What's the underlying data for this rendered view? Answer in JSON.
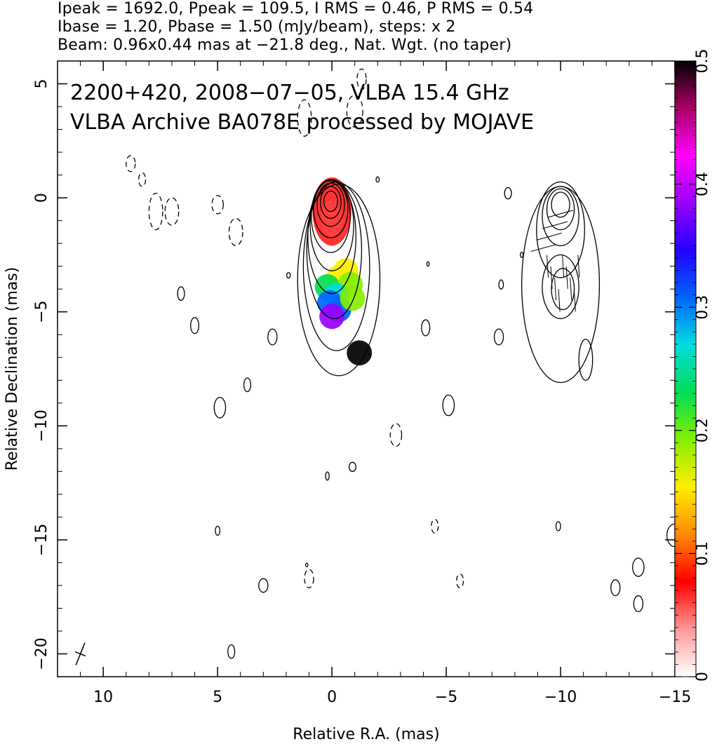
{
  "header": {
    "line1": "Ipeak = 1692.0, Ppeak = 109.5, I RMS = 0.46, P RMS = 0.54",
    "line2": "Ibase = 1.20, Pbase = 1.50 (mJy/beam), steps: x 2",
    "line3": "Beam: 0.96x0.44 mas at −21.8 deg., Nat. Wgt. (no taper)"
  },
  "chart_data": {
    "type": "contour",
    "xlabel": "Relative R.A. (mas)",
    "ylabel": "Relative Declination (mas)",
    "xlim": [
      12,
      -15
    ],
    "ylim": [
      -21,
      6
    ],
    "x_ticks": [
      {
        "v": 10,
        "label": "10"
      },
      {
        "v": 5,
        "label": "5"
      },
      {
        "v": 0,
        "label": "0"
      },
      {
        "v": -5,
        "label": "−5"
      },
      {
        "v": -10,
        "label": "−10"
      },
      {
        "v": -15,
        "label": "−15"
      }
    ],
    "y_ticks": [
      {
        "v": 5,
        "label": "5"
      },
      {
        "v": 0,
        "label": "0"
      },
      {
        "v": -5,
        "label": "−5"
      },
      {
        "v": -10,
        "label": "−10"
      },
      {
        "v": -15,
        "label": "−15"
      },
      {
        "v": -20,
        "label": "−20"
      }
    ],
    "annotations": [
      "2200+420, 2008−07−05, VLBA 15.4 GHz",
      "VLBA Archive BA078E processed by MOJAVE"
    ],
    "colorbar": {
      "range": [
        0,
        0.5
      ],
      "ticks": [
        {
          "v": 0,
          "label": "0"
        },
        {
          "v": 0.1,
          "label": "0.1"
        },
        {
          "v": 0.2,
          "label": "0.2"
        },
        {
          "v": 0.3,
          "label": "0.3"
        },
        {
          "v": 0.4,
          "label": "0.4"
        },
        {
          "v": 0.5,
          "label": "0.5"
        }
      ],
      "colors": [
        "#ffffff",
        "#ff9999",
        "#ff0000",
        "#ff8800",
        "#ffee00",
        "#88ee00",
        "#00dd55",
        "#00dddd",
        "#0066ff",
        "#2200ff",
        "#9900ff",
        "#ff00ff",
        "#aa0066",
        "#000000"
      ]
    },
    "jet_polarization": [
      {
        "x": -0.3,
        "y": -3.5,
        "v": 0.17
      },
      {
        "x": -0.6,
        "y": -3.2,
        "v": 0.15
      },
      {
        "x": 0.2,
        "y": -3.9,
        "v": 0.22
      },
      {
        "x": -0.8,
        "y": -3.8,
        "v": 0.18
      },
      {
        "x": -0.2,
        "y": -4.3,
        "v": 0.25
      },
      {
        "x": 0.1,
        "y": -4.6,
        "v": 0.31
      },
      {
        "x": -0.3,
        "y": -4.9,
        "v": 0.29
      },
      {
        "x": 0.0,
        "y": -5.2,
        "v": 0.38
      },
      {
        "x": -0.9,
        "y": -4.4,
        "v": 0.21
      },
      {
        "x": -1.2,
        "y": -6.8,
        "v": 0.49
      }
    ],
    "core_polarization": {
      "x": 0.0,
      "y": -0.6,
      "v": 0.08
    },
    "main_contours": [
      {
        "cx": -0.3,
        "cy": -3.6,
        "rx": 1.8,
        "ry": 4.2,
        "dash": false
      },
      {
        "cx": -0.2,
        "cy": -3.0,
        "rx": 1.45,
        "ry": 3.7,
        "dash": false
      },
      {
        "cx": -0.1,
        "cy": -2.3,
        "rx": 1.2,
        "ry": 3.0,
        "dash": false
      },
      {
        "cx": 0.0,
        "cy": -1.7,
        "rx": 1.05,
        "ry": 2.5,
        "dash": false
      },
      {
        "cx": 0.0,
        "cy": -1.2,
        "rx": 0.95,
        "ry": 2.0,
        "dash": false
      },
      {
        "cx": 0.05,
        "cy": -0.8,
        "rx": 0.85,
        "ry": 1.6,
        "dash": false
      },
      {
        "cx": 0.05,
        "cy": -0.5,
        "rx": 0.75,
        "ry": 1.25,
        "dash": false
      },
      {
        "cx": 0.05,
        "cy": -0.3,
        "rx": 0.6,
        "ry": 0.95,
        "dash": false
      },
      {
        "cx": 0.05,
        "cy": -0.2,
        "rx": 0.45,
        "ry": 0.7,
        "dash": false
      },
      {
        "cx": 0.05,
        "cy": -0.15,
        "rx": 0.3,
        "ry": 0.45,
        "dash": false
      }
    ],
    "pol_contours": [
      {
        "cx": -10.0,
        "cy": -3.8,
        "rx": 1.7,
        "ry": 4.3,
        "dash": false
      },
      {
        "cx": -10.0,
        "cy": -1.4,
        "rx": 1.05,
        "ry": 2.1,
        "dash": false
      },
      {
        "cx": -10.0,
        "cy": -0.8,
        "rx": 0.8,
        "ry": 1.3,
        "dash": false
      },
      {
        "cx": -10.0,
        "cy": -0.5,
        "rx": 0.6,
        "ry": 0.9,
        "dash": false
      },
      {
        "cx": -10.0,
        "cy": -0.3,
        "rx": 0.4,
        "ry": 0.55,
        "dash": false
      },
      {
        "cx": -10.0,
        "cy": -3.9,
        "rx": 0.8,
        "ry": 1.4,
        "dash": false
      },
      {
        "cx": -10.1,
        "cy": -4.0,
        "rx": 0.5,
        "ry": 0.9,
        "dash": false
      },
      {
        "cx": -11.1,
        "cy": -7.1,
        "rx": 0.3,
        "ry": 0.9,
        "dash": false
      }
    ],
    "noise_contours": [
      {
        "cx": 8.8,
        "cy": 1.5,
        "rx": 0.2,
        "ry": 0.35,
        "dash": true
      },
      {
        "cx": 8.3,
        "cy": 0.8,
        "rx": 0.15,
        "ry": 0.3,
        "dash": true
      },
      {
        "cx": 7.7,
        "cy": -0.6,
        "rx": 0.3,
        "ry": 0.8,
        "dash": true
      },
      {
        "cx": 7.0,
        "cy": -0.6,
        "rx": 0.3,
        "ry": 0.6,
        "dash": true
      },
      {
        "cx": 5.0,
        "cy": -0.3,
        "rx": 0.25,
        "ry": 0.4,
        "dash": true
      },
      {
        "cx": 4.2,
        "cy": -1.5,
        "rx": 0.3,
        "ry": 0.6,
        "dash": true
      },
      {
        "cx": 6.6,
        "cy": -4.2,
        "rx": 0.15,
        "ry": 0.3,
        "dash": false
      },
      {
        "cx": 6.0,
        "cy": -5.6,
        "rx": 0.18,
        "ry": 0.35,
        "dash": false
      },
      {
        "cx": 2.6,
        "cy": -6.1,
        "rx": 0.2,
        "ry": 0.35,
        "dash": false
      },
      {
        "cx": 1.9,
        "cy": -3.4,
        "rx": 0.08,
        "ry": 0.12,
        "dash": false
      },
      {
        "cx": 3.7,
        "cy": -8.2,
        "rx": 0.15,
        "ry": 0.3,
        "dash": false
      },
      {
        "cx": 4.9,
        "cy": -9.2,
        "rx": 0.25,
        "ry": 0.45,
        "dash": false
      },
      {
        "cx": -2.8,
        "cy": -10.4,
        "rx": 0.25,
        "ry": 0.5,
        "dash": true
      },
      {
        "cx": -0.9,
        "cy": -11.8,
        "rx": 0.15,
        "ry": 0.2,
        "dash": false
      },
      {
        "cx": 0.2,
        "cy": -12.2,
        "rx": 0.08,
        "ry": 0.18,
        "dash": false
      },
      {
        "cx": -5.1,
        "cy": -9.1,
        "rx": 0.25,
        "ry": 0.45,
        "dash": false
      },
      {
        "cx": -4.1,
        "cy": -5.7,
        "rx": 0.18,
        "ry": 0.35,
        "dash": false
      },
      {
        "cx": -7.3,
        "cy": -6.1,
        "rx": 0.2,
        "ry": 0.35,
        "dash": false
      },
      {
        "cx": -7.7,
        "cy": 0.2,
        "rx": 0.15,
        "ry": 0.25,
        "dash": false
      },
      {
        "cx": -8.3,
        "cy": -2.5,
        "rx": 0.06,
        "ry": 0.12,
        "dash": false
      },
      {
        "cx": -7.4,
        "cy": -3.8,
        "rx": 0.1,
        "ry": 0.2,
        "dash": false
      },
      {
        "cx": -4.2,
        "cy": -2.9,
        "rx": 0.05,
        "ry": 0.1,
        "dash": false
      },
      {
        "cx": -2.0,
        "cy": 0.8,
        "rx": 0.07,
        "ry": 0.12,
        "dash": false
      },
      {
        "cx": 1.2,
        "cy": 3.5,
        "rx": 0.3,
        "ry": 0.8,
        "dash": true
      },
      {
        "cx": -1.3,
        "cy": 5.2,
        "rx": 0.2,
        "ry": 0.45,
        "dash": true
      },
      {
        "cx": -1.0,
        "cy": 3.8,
        "rx": 0.35,
        "ry": 0.7,
        "dash": true
      },
      {
        "cx": 5.0,
        "cy": -14.6,
        "rx": 0.1,
        "ry": 0.2,
        "dash": false
      },
      {
        "cx": 3.0,
        "cy": -17.0,
        "rx": 0.2,
        "ry": 0.3,
        "dash": false
      },
      {
        "cx": 1.0,
        "cy": -16.7,
        "rx": 0.2,
        "ry": 0.4,
        "dash": true
      },
      {
        "cx": 1.1,
        "cy": -16.1,
        "rx": 0.05,
        "ry": 0.08,
        "dash": false
      },
      {
        "cx": 4.4,
        "cy": -19.9,
        "rx": 0.15,
        "ry": 0.3,
        "dash": false
      },
      {
        "cx": -4.5,
        "cy": -14.4,
        "rx": 0.15,
        "ry": 0.3,
        "dash": true
      },
      {
        "cx": -5.6,
        "cy": -16.8,
        "rx": 0.15,
        "ry": 0.3,
        "dash": true
      },
      {
        "cx": -9.9,
        "cy": -14.4,
        "rx": 0.1,
        "ry": 0.2,
        "dash": false
      },
      {
        "cx": -12.4,
        "cy": -17.1,
        "rx": 0.2,
        "ry": 0.35,
        "dash": false
      },
      {
        "cx": -13.4,
        "cy": -16.2,
        "rx": 0.25,
        "ry": 0.4,
        "dash": false
      },
      {
        "cx": -13.4,
        "cy": -17.8,
        "rx": 0.2,
        "ry": 0.35,
        "dash": false
      },
      {
        "cx": -15.0,
        "cy": -14.8,
        "rx": 0.35,
        "ry": 0.5,
        "dash": false
      }
    ],
    "beam": {
      "x": 11.0,
      "y": -20.0,
      "major": 0.96,
      "minor": 0.44,
      "pa": -21.8
    }
  }
}
